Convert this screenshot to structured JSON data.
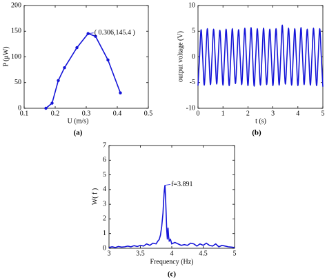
{
  "chart_data": [
    {
      "type": "line",
      "caption": "(a)",
      "xlabel": "U (m/s)",
      "ylabel": "P (μW)",
      "color": "#1515d8",
      "markers": true,
      "x": [
        0.17,
        0.19,
        0.21,
        0.23,
        0.27,
        0.306,
        0.33,
        0.37,
        0.41
      ],
      "values": [
        0,
        10,
        54,
        79,
        118,
        145.4,
        140,
        94,
        30
      ],
      "xlim": [
        0.1,
        0.5
      ],
      "xticks": [
        0.1,
        0.2,
        0.3,
        0.4,
        0.5
      ],
      "ylim": [
        0,
        200
      ],
      "yticks": [
        0,
        50,
        100,
        150,
        200
      ],
      "annotation": {
        "text": "( 0.306,145.4 )",
        "x": 0.306,
        "y": 145.4
      }
    },
    {
      "type": "line",
      "caption": "(b)",
      "xlabel": "t (s)",
      "ylabel": "output voltage (V)",
      "color": "#1515d8",
      "markers": false,
      "x": [
        0,
        0.0625,
        0.125,
        0.1875,
        0.25,
        0.3125,
        0.375,
        0.4375,
        0.5,
        0.5625,
        0.625,
        0.6875,
        0.75,
        0.8125,
        0.875,
        0.9375,
        1,
        1.0625,
        1.125,
        1.1875,
        1.25,
        1.3125,
        1.375,
        1.4375,
        1.5,
        1.5625,
        1.625,
        1.6875,
        1.75,
        1.8125,
        1.875,
        1.9375,
        2,
        2.0625,
        2.125,
        2.1875,
        2.25,
        2.3125,
        2.375,
        2.4375,
        2.5,
        2.5625,
        2.625,
        2.6875,
        2.75,
        2.8125,
        2.875,
        2.9375,
        3,
        3.0625,
        3.125,
        3.1875,
        3.25,
        3.3125,
        3.375,
        3.4375,
        3.5,
        3.5625,
        3.625,
        3.6875,
        3.75,
        3.8125,
        3.875,
        3.9375,
        4,
        4.0625,
        4.125,
        4.1875,
        4.25,
        4.3125,
        4.375,
        4.4375,
        4.5,
        4.5625,
        4.625,
        4.6875,
        4.75,
        4.8125,
        4.875,
        4.9375,
        5
      ],
      "values": [
        -5.6,
        0,
        5.3,
        0,
        -5.5,
        0,
        5.5,
        0,
        -5.4,
        0,
        5.4,
        0,
        -5.3,
        0,
        5.2,
        0,
        -5.5,
        0,
        5.4,
        0,
        -5.6,
        0,
        5.5,
        0,
        -5.2,
        0,
        5.3,
        0,
        -5.4,
        0,
        5.6,
        0,
        -5.6,
        0,
        5.7,
        0,
        -5.7,
        0,
        5.5,
        0,
        -5.5,
        0,
        5.6,
        0,
        -5.4,
        0,
        5.4,
        0,
        -5.6,
        0,
        5.5,
        0,
        -5.5,
        0,
        6.2,
        0,
        -5.3,
        0,
        5.6,
        0,
        -5.5,
        0,
        5.5,
        0,
        -5.6,
        0,
        5.7,
        0,
        -5.4,
        0,
        5.4,
        0,
        -5.5,
        0,
        5.6,
        0,
        -5.6,
        0,
        5.5,
        0,
        -5.8
      ],
      "xlim": [
        0,
        5
      ],
      "xticks": [
        0,
        1,
        2,
        3,
        4,
        5
      ],
      "ylim": [
        -10,
        10
      ],
      "yticks": [
        -10,
        -5,
        0,
        5,
        10
      ]
    },
    {
      "type": "line",
      "caption": "(c)",
      "xlabel": "Frequency (Hz)",
      "ylabel": "W( f )",
      "color": "#1515d8",
      "markers": false,
      "x": [
        3.0,
        3.05,
        3.1,
        3.15,
        3.2,
        3.25,
        3.3,
        3.35,
        3.4,
        3.45,
        3.5,
        3.55,
        3.6,
        3.65,
        3.7,
        3.75,
        3.78,
        3.8,
        3.82,
        3.84,
        3.86,
        3.87,
        3.88,
        3.891,
        3.9,
        3.91,
        3.92,
        3.93,
        3.94,
        3.95,
        3.96,
        3.98,
        4.0,
        4.05,
        4.1,
        4.15,
        4.2,
        4.25,
        4.3,
        4.35,
        4.4,
        4.45,
        4.5,
        4.55,
        4.6,
        4.65,
        4.7,
        4.75,
        4.8,
        4.85,
        4.9,
        4.95,
        5.0
      ],
      "values": [
        0.05,
        0.1,
        0.05,
        0.12,
        0.08,
        0.1,
        0.15,
        0.1,
        0.18,
        0.12,
        0.2,
        0.15,
        0.3,
        0.2,
        0.35,
        0.3,
        0.5,
        0.6,
        0.9,
        1.5,
        2.4,
        3.2,
        3.9,
        4.3,
        3.6,
        2.4,
        1.2,
        0.6,
        1.4,
        0.8,
        0.5,
        0.6,
        0.3,
        0.4,
        0.3,
        0.2,
        0.25,
        0.2,
        0.35,
        0.3,
        0.15,
        0.3,
        0.2,
        0.35,
        0.2,
        0.15,
        0.3,
        0.1,
        0.2,
        0.15,
        0.1,
        0.08,
        0.05
      ],
      "xlim": [
        3,
        5
      ],
      "xticks": [
        3,
        3.5,
        4,
        4.5,
        5
      ],
      "ylim": [
        0,
        7
      ],
      "yticks": [
        0,
        1,
        2,
        3,
        4,
        5,
        6,
        7
      ],
      "annotation": {
        "text": "f=3.891",
        "x": 3.891,
        "y": 4.3
      }
    }
  ]
}
